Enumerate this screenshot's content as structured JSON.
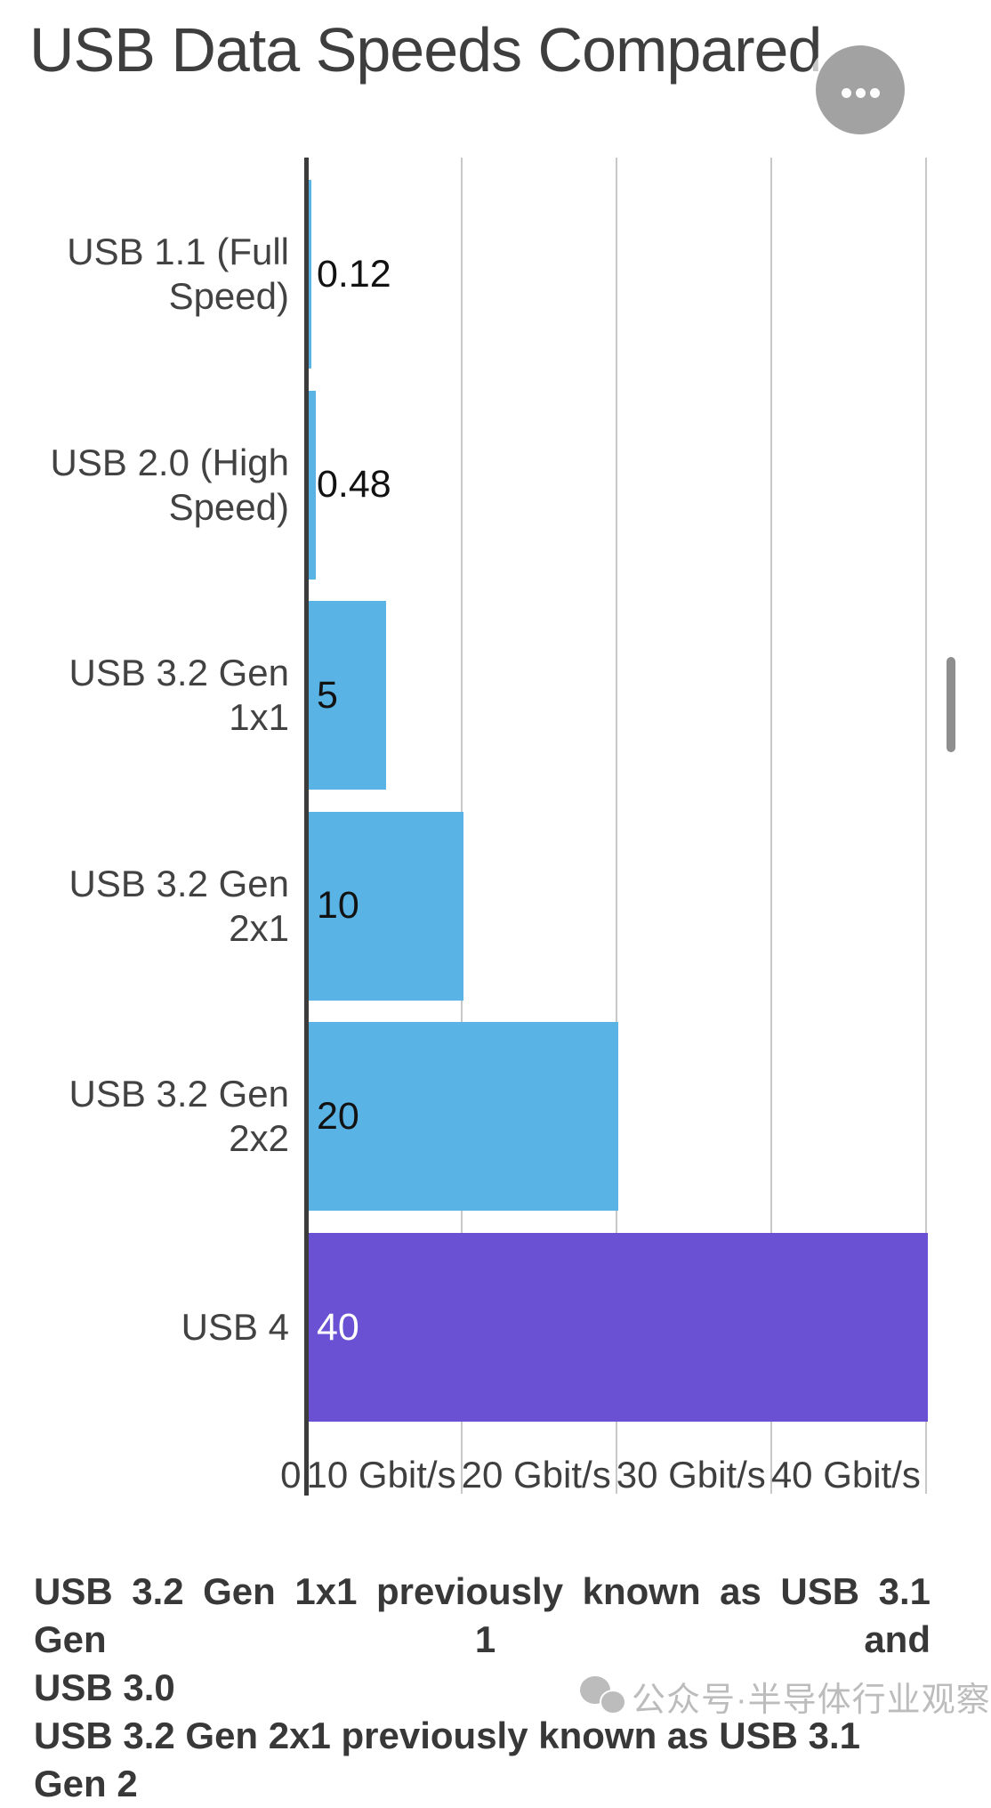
{
  "title": "USB Data Speeds Compared",
  "more_button": {
    "icon_name": "ellipsis-icon"
  },
  "chart_data": {
    "type": "bar",
    "orientation": "horizontal",
    "title": "USB Data Speeds Compared",
    "xlabel": "",
    "ylabel": "",
    "unit": "Gbit/s",
    "xlim": [
      0,
      42
    ],
    "grid": true,
    "categories": [
      "USB 1.1 (Full Speed)",
      "USB 2.0 (High Speed)",
      "USB 3.2 Gen 1x1",
      "USB 3.2 Gen 2x1",
      "USB 3.2 Gen 2x2",
      "USB 4"
    ],
    "values": [
      0.12,
      0.48,
      5,
      10,
      20,
      40
    ],
    "value_labels": [
      "0.12",
      "0.48",
      "5",
      "10",
      "20",
      "40"
    ],
    "x_ticks": [
      {
        "value": 0,
        "label": "0"
      },
      {
        "value": 10,
        "label": "10 Gbit/s"
      },
      {
        "value": 20,
        "label": "20 Gbit/s"
      },
      {
        "value": 30,
        "label": "30 Gbit/s"
      },
      {
        "value": 40,
        "label": "40 Gbit/s"
      }
    ],
    "bar_colors": [
      "#5ab3e5",
      "#5ab3e5",
      "#5ab3e5",
      "#5ab3e5",
      "#5ab3e5",
      "#6a51d4"
    ],
    "value_label_colors": [
      "#121212",
      "#121212",
      "#121212",
      "#121212",
      "#121212",
      "#ffffff"
    ],
    "legend": null
  },
  "footnote": {
    "lines": [
      "USB 3.2 Gen 1x1 previously known as USB 3.1 Gen 1 and",
      "USB 3.0",
      "USB 3.2 Gen 2x1 previously known as USB 3.1 Gen 2"
    ]
  },
  "watermark": {
    "text": "公众号·半导体行业观察"
  },
  "colors": {
    "bar_blue": "#5ab3e5",
    "bar_purple": "#6a51d4",
    "axis_line": "#3b3b3b",
    "gridline": "#c8c8c8",
    "title_text": "#3e3e3e",
    "label_text": "#424242",
    "footnote_text": "#383838",
    "watermark_gray": "#8c8c8c",
    "more_button_bg": "#a2a2a2",
    "scrollbar": "#8e8e8e"
  }
}
